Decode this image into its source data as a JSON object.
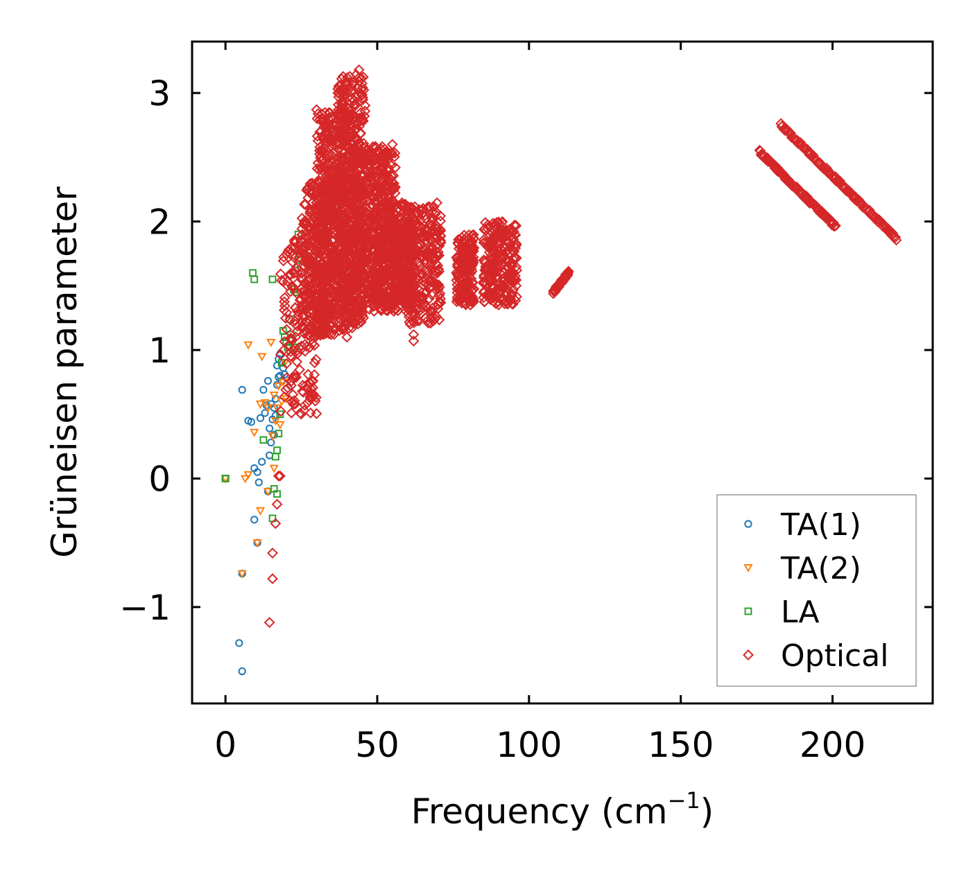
{
  "chart_data": {
    "type": "scatter",
    "title": "",
    "xlabel": "Frequency (cm",
    "xlabel_sup": "−1",
    "xlabel_close": ")",
    "ylabel": "Grüneisen parameter",
    "xlim": [
      -11,
      233
    ],
    "ylim": [
      -1.75,
      3.4
    ],
    "x_ticks": [
      0,
      50,
      100,
      150,
      200
    ],
    "x_tick_labels": [
      "0",
      "50",
      "100",
      "150",
      "200"
    ],
    "y_ticks": [
      -1,
      0,
      1,
      2,
      3
    ],
    "y_tick_labels": [
      "−1",
      "0",
      "1",
      "2",
      "3"
    ],
    "legend_position": "lower-right",
    "series": [
      {
        "name": "TA(1)",
        "marker": "circle",
        "color": "#1f77b4",
        "points": [
          [
            0,
            0
          ],
          [
            4.5,
            -1.28
          ],
          [
            5.5,
            -1.5
          ],
          [
            5.5,
            -0.74
          ],
          [
            5.5,
            0.69
          ],
          [
            7.5,
            0.45
          ],
          [
            8.5,
            0.44
          ],
          [
            9.5,
            0.08
          ],
          [
            10.5,
            0.05
          ],
          [
            10.5,
            -0.5
          ],
          [
            11,
            -0.03
          ],
          [
            11.5,
            0.47
          ],
          [
            12,
            0.13
          ],
          [
            12.5,
            0.69
          ],
          [
            13,
            0.51
          ],
          [
            13.5,
            0.57
          ],
          [
            14,
            0.76
          ],
          [
            14,
            -0.1
          ],
          [
            14.5,
            0.18
          ],
          [
            14.5,
            0.39
          ],
          [
            15,
            0.58
          ],
          [
            15,
            0.28
          ],
          [
            15.5,
            0.46
          ],
          [
            16,
            0.55
          ],
          [
            16,
            0.34
          ],
          [
            16.5,
            0.62
          ],
          [
            16.5,
            0.49
          ],
          [
            17,
            0.73
          ],
          [
            17,
            0.88
          ],
          [
            17.5,
            0.79
          ],
          [
            17.5,
            0.93
          ],
          [
            18,
            0.8
          ],
          [
            18,
            0.97
          ],
          [
            18.5,
            0.76
          ],
          [
            19,
            0.86
          ],
          [
            19.5,
            0.81
          ],
          [
            9.5,
            -0.32
          ]
        ]
      },
      {
        "name": "TA(2)",
        "marker": "triangle-down",
        "color": "#ff7f0e",
        "points": [
          [
            0,
            0
          ],
          [
            6.5,
            0
          ],
          [
            7.5,
            0.03
          ],
          [
            7.5,
            1.04
          ],
          [
            9.5,
            0.36
          ],
          [
            11.5,
            0.58
          ],
          [
            11.5,
            -0.25
          ],
          [
            12,
            0.95
          ],
          [
            13,
            0.59
          ],
          [
            14,
            0.55
          ],
          [
            14,
            -0.1
          ],
          [
            15,
            1.06
          ],
          [
            15.5,
            0.33
          ],
          [
            16,
            0.65
          ],
          [
            16,
            0.08
          ],
          [
            16.5,
            0.45
          ],
          [
            17,
            0.55
          ],
          [
            17.5,
            0.72
          ],
          [
            18,
            0.42
          ],
          [
            18.5,
            0.6
          ],
          [
            19,
            0.75
          ],
          [
            19.5,
            0.9
          ],
          [
            20,
            0.62
          ],
          [
            10.5,
            -0.5
          ],
          [
            5.5,
            -0.74
          ]
        ]
      },
      {
        "name": "LA",
        "marker": "square",
        "color": "#2ca02c",
        "points": [
          [
            0,
            0
          ],
          [
            9,
            1.6
          ],
          [
            9.5,
            1.55
          ],
          [
            12.5,
            0.3
          ],
          [
            15.5,
            -0.31
          ],
          [
            15.5,
            1.55
          ],
          [
            16,
            -0.08
          ],
          [
            16.5,
            0.17
          ],
          [
            17,
            -0.12
          ],
          [
            17,
            0.22
          ],
          [
            17.5,
            0.35
          ],
          [
            18,
            0.5
          ],
          [
            18.5,
            0.9
          ],
          [
            19,
            1.15
          ],
          [
            19.5,
            1.1
          ],
          [
            20,
            1.06
          ],
          [
            20.5,
            1.02
          ],
          [
            21,
            1.24
          ],
          [
            21.5,
            1.12
          ],
          [
            22,
            1.08
          ],
          [
            22.5,
            1.47
          ],
          [
            23,
            1.62
          ],
          [
            23,
            1.02
          ],
          [
            23.5,
            1.45
          ],
          [
            24,
            1.7
          ],
          [
            24,
            1.9
          ],
          [
            24.5,
            1.75
          ]
        ]
      },
      {
        "name": "Optical",
        "marker": "diamond",
        "color": "#d62728",
        "points": [],
        "clusters": [
          {
            "x": [
              18,
              30
            ],
            "y": [
              0.5,
              1.9
            ],
            "n": 160
          },
          {
            "x": [
              25,
              36
            ],
            "y": [
              1.1,
              2.3
            ],
            "n": 380
          },
          {
            "x": [
              30,
              42
            ],
            "y": [
              1.15,
              2.85
            ],
            "n": 520
          },
          {
            "x": [
              37,
              46
            ],
            "y": [
              1.2,
              3.15
            ],
            "n": 460
          },
          {
            "x": [
              42,
              56
            ],
            "y": [
              1.3,
              2.6
            ],
            "n": 520
          },
          {
            "x": [
              48,
              61
            ],
            "y": [
              1.3,
              2.15
            ],
            "n": 300
          },
          {
            "x": [
              56,
              62
            ],
            "y": [
              1.35,
              1.95
            ],
            "n": 160
          },
          {
            "x": [
              60,
              71
            ],
            "y": [
              1.2,
              2.15
            ],
            "n": 260
          },
          {
            "x": [
              76,
              82
            ],
            "y": [
              1.35,
              1.9
            ],
            "n": 180
          },
          {
            "x": [
              85,
              96
            ],
            "y": [
              1.35,
              2.0
            ],
            "n": 250
          }
        ],
        "bands": [
          {
            "x": [
              108,
              113
            ],
            "y": [
              1.45,
              1.6
            ],
            "n": 60
          },
          {
            "x": [
              176,
              201
            ],
            "y": [
              2.54,
              1.96
            ],
            "n": 110
          },
          {
            "x": [
              183,
              221
            ],
            "y": [
              2.75,
              1.87
            ],
            "n": 130
          }
        ],
        "outliers": [
          [
            14.5,
            -1.12
          ],
          [
            15.5,
            -0.78
          ],
          [
            15.5,
            -0.58
          ],
          [
            16.5,
            -0.35
          ],
          [
            17,
            -0.2
          ],
          [
            17.5,
            0.02
          ],
          [
            18,
            0.02
          ],
          [
            30,
            2.87
          ],
          [
            40,
            1.1
          ],
          [
            44,
            3.18
          ],
          [
            62,
            1.07
          ],
          [
            62,
            1.12
          ]
        ]
      }
    ]
  }
}
